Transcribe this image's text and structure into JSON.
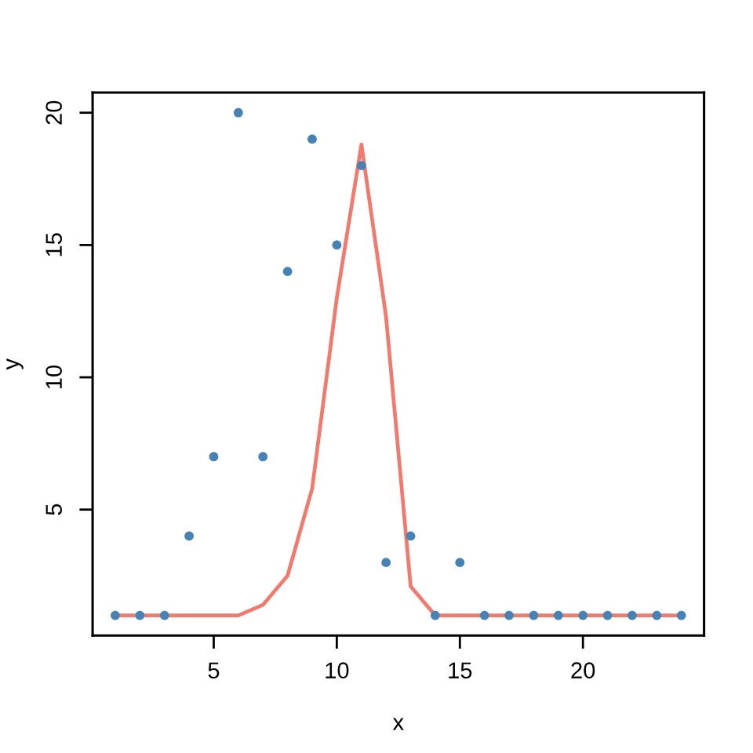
{
  "chart_data": {
    "type": "scatter",
    "xlabel": "x",
    "ylabel": "y",
    "xlim": [
      0.08,
      24.92
    ],
    "ylim": [
      0.24,
      20.76
    ],
    "xticks": [
      5,
      10,
      15,
      20
    ],
    "yticks": [
      5,
      10,
      15,
      20
    ],
    "series": [
      {
        "color": "#4682b4",
        "marker": "circle",
        "x": [
          1,
          2,
          3,
          4,
          5,
          6,
          7,
          8,
          9,
          10,
          11,
          12,
          13,
          14,
          15,
          16,
          17,
          18,
          19,
          20,
          21,
          22,
          23,
          24
        ],
        "values": [
          1,
          1,
          1,
          4,
          7,
          20,
          7,
          14,
          19,
          15,
          18,
          3,
          4,
          1,
          3,
          1,
          1,
          1,
          1,
          1,
          1,
          1,
          1,
          1
        ]
      },
      {
        "type": "line",
        "color": "#f07a6e",
        "marker": "none",
        "line_style": "solid",
        "x": [
          1,
          2,
          3,
          4,
          5,
          6,
          7,
          8,
          9,
          10,
          11,
          12,
          13,
          14,
          15,
          16,
          17,
          18,
          19,
          20,
          21,
          22,
          23,
          24
        ],
        "values": [
          1,
          1,
          1,
          1,
          1,
          1,
          1.4,
          2.5,
          5.8,
          13,
          18.8,
          12.3,
          2.1,
          1,
          1,
          1,
          1,
          1,
          1,
          1,
          1,
          1,
          1,
          1
        ]
      }
    ]
  }
}
